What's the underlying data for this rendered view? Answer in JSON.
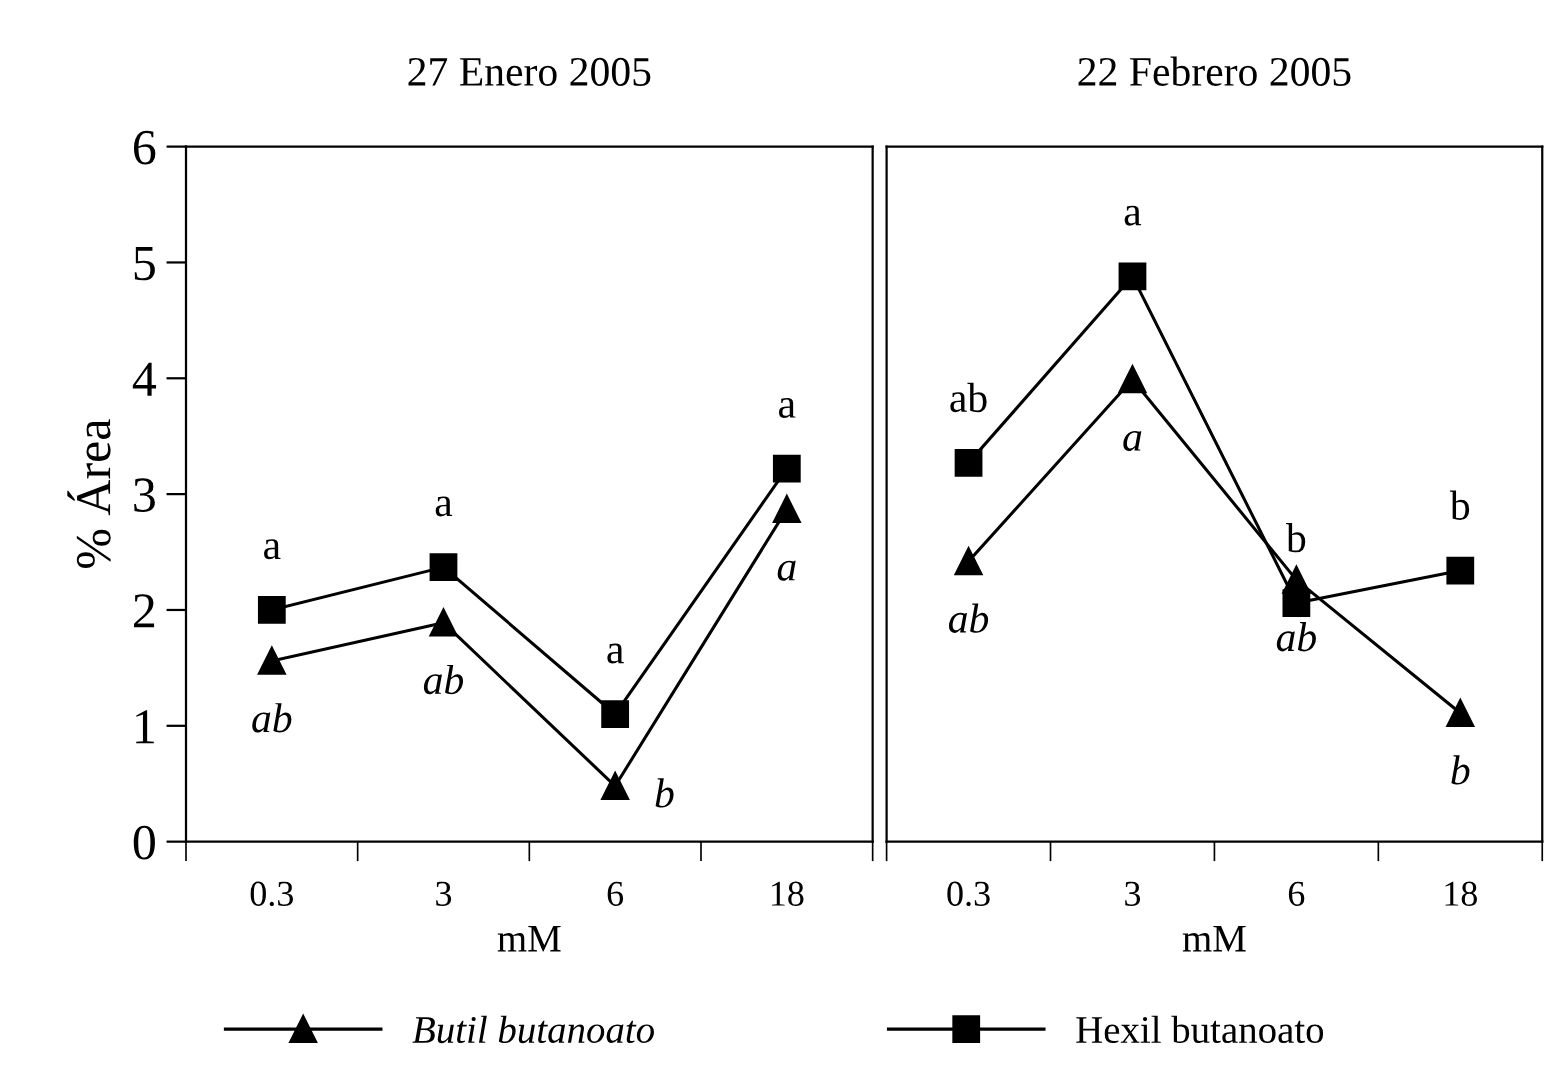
{
  "chart_data": [
    {
      "type": "line",
      "title": "27 Enero 2005",
      "xlabel": "mM",
      "ylabel": "% Área",
      "categories": [
        "0.3",
        "3",
        "6",
        "18"
      ],
      "ylim": [
        0,
        6
      ],
      "yticks": [
        0,
        1,
        2,
        3,
        4,
        5,
        6
      ],
      "legend": "bottom",
      "grid": false,
      "series": [
        {
          "name": "Butil butanoato",
          "color": "#000000",
          "marker": "triangle",
          "values": [
            1.56,
            1.89,
            0.48,
            2.87
          ],
          "value_labels": [
            "ab",
            "ab",
            "b",
            "a"
          ]
        },
        {
          "name": "Hexil butanoato",
          "color": "#000000",
          "marker": "square",
          "values": [
            2.0,
            2.37,
            1.1,
            3.22
          ],
          "value_labels": [
            "a",
            "a",
            "a",
            "a"
          ]
        }
      ]
    },
    {
      "type": "line",
      "title": "22 Febrero 2005",
      "xlabel": "mM",
      "categories": [
        "0.3",
        "3",
        "6",
        "18"
      ],
      "ylim": [
        0,
        6
      ],
      "tick_labels": "x",
      "grid": false,
      "series": [
        {
          "color": "#000000",
          "marker": "triangle",
          "values": [
            2.42,
            3.99,
            2.26,
            1.11
          ],
          "value_labels": [
            "ab",
            "a",
            "ab",
            "b"
          ]
        },
        {
          "color": "#000000",
          "marker": "square",
          "values": [
            3.27,
            4.88,
            2.06,
            2.34
          ],
          "value_labels": [
            "ab",
            "a",
            "b",
            "b"
          ]
        }
      ]
    }
  ]
}
